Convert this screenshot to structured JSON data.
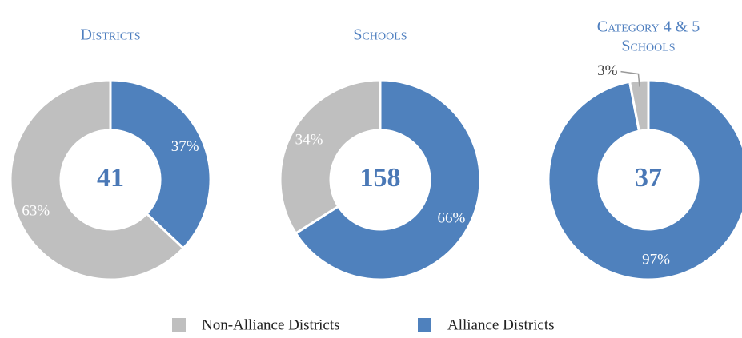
{
  "chart_data": [
    {
      "type": "donut",
      "title": "Districts",
      "values": [
        63,
        37
      ],
      "value_labels": [
        "63%",
        "37%"
      ],
      "center_label": "41"
    },
    {
      "type": "donut",
      "title": "Schools",
      "values": [
        34,
        66
      ],
      "value_labels": [
        "34%",
        "66%"
      ],
      "center_label": "158"
    },
    {
      "type": "donut",
      "title": [
        "Category 4 & 5",
        "Schools"
      ],
      "values": [
        3,
        97
      ],
      "value_labels": [
        "3%",
        "97%"
      ],
      "center_label": "37"
    }
  ],
  "legend": {
    "labels": [
      "Non-Alliance Districts",
      "Alliance Districts"
    ],
    "colors": [
      "#bfbfbf",
      "#4f81bd"
    ]
  }
}
